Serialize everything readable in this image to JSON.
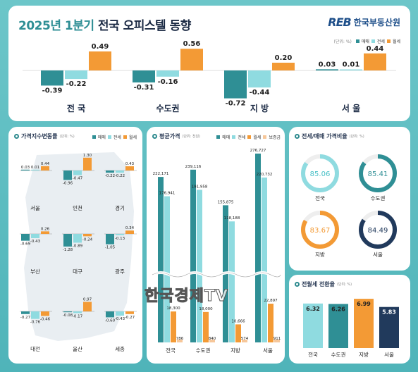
{
  "header": {
    "title_year": "2025년 1분기",
    "title_rest": "전국 오피스텔 동향",
    "logo_mark": "REB",
    "logo_text": "한국부동산원"
  },
  "legend": {
    "unit": "(단위: %)",
    "sale": "매매",
    "jeonse": "전세",
    "monthly": "월세",
    "unit_won": "(단위: 천원)",
    "deposit": "보증금"
  },
  "colors": {
    "sale": "#2f8f95",
    "jeonse": "#8fdbe0",
    "monthly": "#f39a35",
    "navy": "#213a5c",
    "deposit": "#f6c79a"
  },
  "chart_data": [
    {
      "type": "bar",
      "id": "top-change",
      "categories": [
        "전 국",
        "수도권",
        "지 방",
        "서 울"
      ],
      "series": [
        {
          "name": "매매",
          "values": [
            -0.39,
            -0.31,
            -0.72,
            0.03
          ]
        },
        {
          "name": "전세",
          "values": [
            -0.22,
            -0.16,
            -0.44,
            0.01
          ]
        },
        {
          "name": "월세",
          "values": [
            0.49,
            0.56,
            0.2,
            0.44
          ]
        }
      ],
      "value_labels": [
        [
          "-0.39",
          "-0.31",
          "-0.72",
          "0.03"
        ],
        [
          "-0.22",
          "-0.16",
          "-0.44",
          "0.01"
        ],
        [
          "0.49",
          "0.56",
          "0.20",
          "0.44"
        ]
      ]
    },
    {
      "type": "bar",
      "id": "price-index-change",
      "title": "가격지수변동률",
      "categories": [
        "서울",
        "인천",
        "경기",
        "부산",
        "대구",
        "광주",
        "대전",
        "울산",
        "세종"
      ],
      "series": [
        {
          "name": "매매",
          "values": [
            0.03,
            -0.96,
            -0.22,
            -0.69,
            -1.28,
            -1.05,
            -0.27,
            -0.08,
            -0.6
          ]
        },
        {
          "name": "전세",
          "values": [
            0.01,
            -0.47,
            -0.22,
            -0.43,
            -0.89,
            -0.13,
            -0.76,
            -0.17,
            -0.43
          ]
        },
        {
          "name": "월세",
          "values": [
            0.44,
            1.3,
            0.43,
            0.26,
            -0.24,
            0.34,
            -0.46,
            0.97,
            -0.27
          ]
        }
      ],
      "value_labels": [
        [
          "0.03",
          "-0.96",
          "-0.22",
          "-0.69",
          "-1.28",
          "-1.05",
          "-0.27",
          "-0.08",
          "-0.60"
        ],
        [
          "0.01",
          "-0.47",
          "-0.22",
          "-0.43",
          "-0.89",
          "-0.13",
          "-0.76",
          "-0.17",
          "-0.43"
        ],
        [
          "0.44",
          "1.30",
          "0.43",
          "0.26",
          "-0.24",
          "0.34",
          "-0.46",
          "0.97",
          "-0.27"
        ]
      ]
    },
    {
      "type": "bar",
      "id": "avg-price",
      "title": "평균가격",
      "categories": [
        "전국",
        "수도권",
        "지방",
        "서울"
      ],
      "series": [
        {
          "name": "매매",
          "values": [
            222171,
            239116,
            155875,
            276727
          ]
        },
        {
          "name": "전세",
          "values": [
            176941,
            191958,
            118188,
            220732
          ]
        },
        {
          "name": "월세",
          "values": [
            18300,
            18000,
            10666,
            22897
          ]
        },
        {
          "name": "보증금",
          "values": [
            786,
            840,
            574,
            911
          ]
        }
      ],
      "value_labels": [
        [
          "222,171",
          "239,116",
          "155,875",
          "276,727"
        ],
        [
          "176,941",
          "191,958",
          "118,188",
          "220,732"
        ],
        [
          "18,300",
          "18,000",
          "10,666",
          "22,897"
        ],
        [
          "786",
          "840",
          "574",
          "911"
        ]
      ]
    },
    {
      "type": "pie",
      "id": "jeonse-sale-ratio",
      "title": "전세/매매 가격비율",
      "categories": [
        "전국",
        "수도권",
        "지방",
        "서울"
      ],
      "values": [
        85.06,
        85.41,
        83.67,
        84.49
      ],
      "value_labels": [
        "85.06",
        "85.41",
        "83.67",
        "84.49"
      ]
    },
    {
      "type": "bar",
      "id": "conversion-rate",
      "title": "전월세 전환율",
      "categories": [
        "전국",
        "수도권",
        "지방",
        "서울"
      ],
      "values": [
        6.32,
        6.26,
        6.99,
        5.83
      ],
      "value_labels": [
        "6.32",
        "6.26",
        "6.99",
        "5.83"
      ]
    }
  ],
  "watermark": "한국경제TV"
}
